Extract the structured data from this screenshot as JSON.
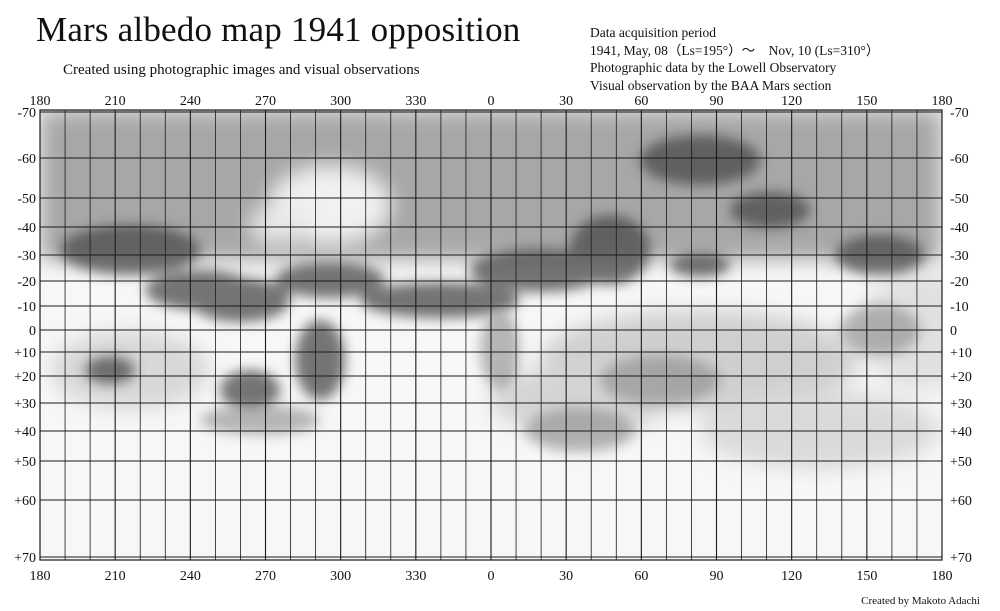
{
  "title": "Mars albedo map 1941 opposition",
  "subtitle": "Created using photographic images and visual observations",
  "info": {
    "line1": "Data acquisition period",
    "line2": "1941, May, 08（Ls=195°）～　Nov, 10 (Ls=310°）",
    "line3": "Photographic data by the Lowell Observatory",
    "line4": "Visual observation by the BAA Mars section"
  },
  "credit": "Created by Makoto Adachi",
  "longitude_labels": [
    "180",
    "210",
    "240",
    "270",
    "300",
    "330",
    "0",
    "30",
    "60",
    "90",
    "120",
    "150",
    "180"
  ],
  "latitude_labels": [
    "-70",
    "-60",
    "-50",
    "-40",
    "-30",
    "-20",
    "-10",
    "0",
    "+10",
    "+20",
    "+30",
    "+40",
    "+50",
    "+60",
    "+70"
  ],
  "latitude_values": [
    -70,
    -60,
    -50,
    -40,
    -30,
    -20,
    -10,
    0,
    10,
    20,
    30,
    40,
    50,
    60,
    70
  ],
  "colors": {
    "grid": "#1a1a1a",
    "paper": "#f7f7f6",
    "shade_dark": "#3a3a3a",
    "shade_mid": "#777777",
    "shade_light": "#b5b5b5"
  }
}
